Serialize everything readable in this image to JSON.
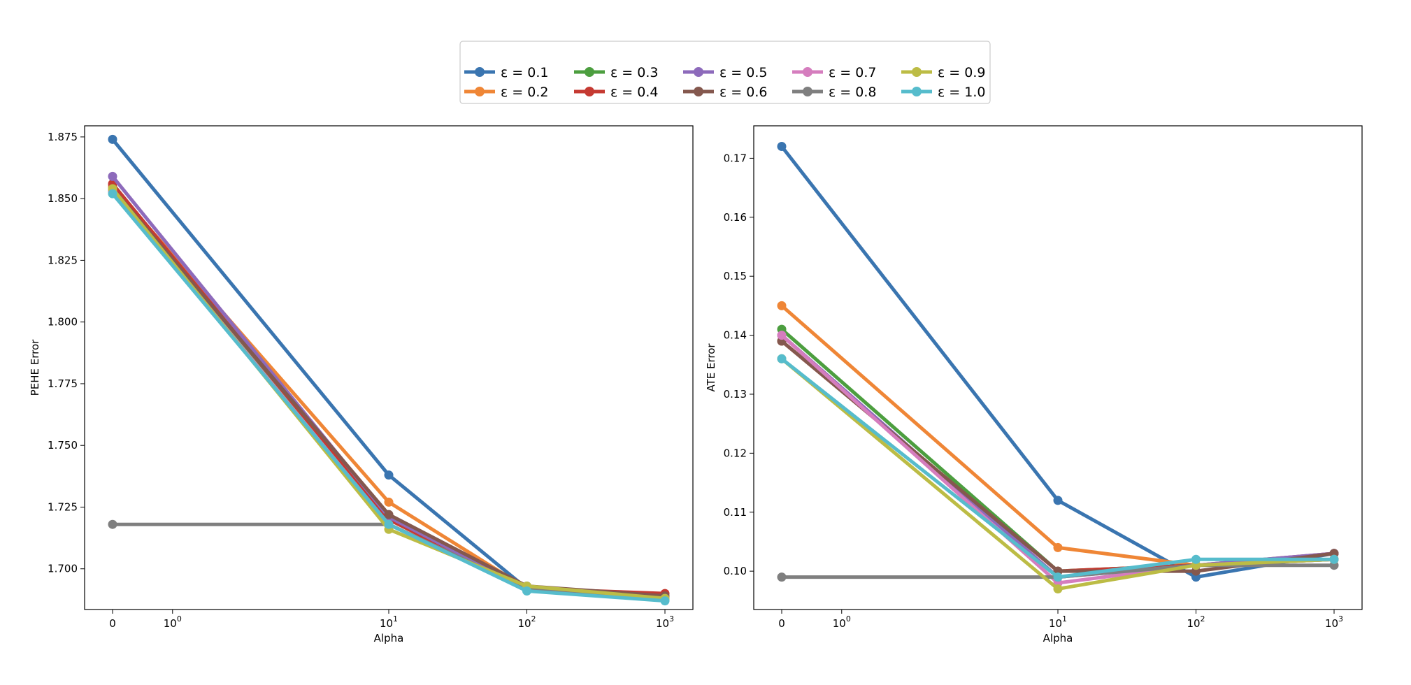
{
  "legend": {
    "entries": [
      {
        "label": "ε = 0.1",
        "color": "#3a75b0"
      },
      {
        "label": "ε = 0.2",
        "color": "#ef8636"
      },
      {
        "label": "ε = 0.3",
        "color": "#4c9e3f"
      },
      {
        "label": "ε = 0.4",
        "color": "#c53a32"
      },
      {
        "label": "ε = 0.5",
        "color": "#8d6abb"
      },
      {
        "label": "ε = 0.6",
        "color": "#84584e"
      },
      {
        "label": "ε = 0.7",
        "color": "#d57dbe"
      },
      {
        "label": "ε = 0.8",
        "color": "#7f7f7f"
      },
      {
        "label": "ε = 0.9",
        "color": "#bcbc45"
      },
      {
        "label": "ε = 1.0",
        "color": "#56bccc"
      }
    ]
  },
  "chart_data": [
    {
      "type": "line",
      "title": "",
      "xlabel": "Alpha",
      "ylabel": "PEHE Error",
      "x_scale": "symlog",
      "x": [
        0,
        10,
        100,
        1000
      ],
      "x_ticks": [
        {
          "value": 0,
          "base": "0",
          "exp": ""
        },
        {
          "value": 1,
          "base": "10",
          "exp": "0"
        },
        {
          "value": 10,
          "base": "10",
          "exp": "1"
        },
        {
          "value": 100,
          "base": "10",
          "exp": "2"
        },
        {
          "value": 1000,
          "base": "10",
          "exp": "3"
        }
      ],
      "ylim": [
        1.6835,
        1.8795
      ],
      "y_ticks": [
        "1.700",
        "1.725",
        "1.750",
        "1.775",
        "1.800",
        "1.825",
        "1.850",
        "1.875"
      ],
      "series": [
        {
          "name": "ε = 0.1",
          "values": [
            1.874,
            1.738,
            1.692,
            1.688
          ]
        },
        {
          "name": "ε = 0.2",
          "values": [
            1.855,
            1.727,
            1.692,
            1.688
          ]
        },
        {
          "name": "ε = 0.3",
          "values": [
            1.853,
            1.72,
            1.692,
            1.688
          ]
        },
        {
          "name": "ε = 0.4",
          "values": [
            1.856,
            1.72,
            1.692,
            1.69
          ]
        },
        {
          "name": "ε = 0.5",
          "values": [
            1.859,
            1.721,
            1.692,
            1.688
          ]
        },
        {
          "name": "ε = 0.6",
          "values": [
            1.854,
            1.722,
            1.693,
            1.689
          ]
        },
        {
          "name": "ε = 0.7",
          "values": [
            1.853,
            1.718,
            1.692,
            1.688
          ]
        },
        {
          "name": "ε = 0.8",
          "values": [
            1.718,
            1.718,
            1.692,
            1.688
          ]
        },
        {
          "name": "ε = 0.9",
          "values": [
            1.854,
            1.716,
            1.693,
            1.688
          ]
        },
        {
          "name": "ε = 1.0",
          "values": [
            1.852,
            1.718,
            1.691,
            1.687
          ]
        }
      ]
    },
    {
      "type": "line",
      "title": "",
      "xlabel": "Alpha",
      "ylabel": "ATE Error",
      "x_scale": "symlog",
      "x": [
        0,
        10,
        100,
        1000
      ],
      "x_ticks": [
        {
          "value": 0,
          "base": "0",
          "exp": ""
        },
        {
          "value": 1,
          "base": "10",
          "exp": "0"
        },
        {
          "value": 10,
          "base": "10",
          "exp": "1"
        },
        {
          "value": 100,
          "base": "10",
          "exp": "2"
        },
        {
          "value": 1000,
          "base": "10",
          "exp": "3"
        }
      ],
      "ylim": [
        0.0935,
        0.1755
      ],
      "y_ticks": [
        "0.10",
        "0.11",
        "0.12",
        "0.13",
        "0.14",
        "0.15",
        "0.16",
        "0.17"
      ],
      "series": [
        {
          "name": "ε = 0.1",
          "values": [
            0.172,
            0.112,
            0.099,
            0.103
          ]
        },
        {
          "name": "ε = 0.2",
          "values": [
            0.145,
            0.104,
            0.101,
            0.102
          ]
        },
        {
          "name": "ε = 0.3",
          "values": [
            0.141,
            0.1,
            0.101,
            0.102
          ]
        },
        {
          "name": "ε = 0.4",
          "values": [
            0.139,
            0.1,
            0.101,
            0.103
          ]
        },
        {
          "name": "ε = 0.5",
          "values": [
            0.14,
            0.099,
            0.101,
            0.103
          ]
        },
        {
          "name": "ε = 0.6",
          "values": [
            0.139,
            0.1,
            0.1,
            0.103
          ]
        },
        {
          "name": "ε = 0.7",
          "values": [
            0.14,
            0.098,
            0.101,
            0.102
          ]
        },
        {
          "name": "ε = 0.8",
          "values": [
            0.099,
            0.099,
            0.101,
            0.101
          ]
        },
        {
          "name": "ε = 0.9",
          "values": [
            0.136,
            0.097,
            0.101,
            0.102
          ]
        },
        {
          "name": "ε = 1.0",
          "values": [
            0.136,
            0.099,
            0.102,
            0.102
          ]
        }
      ]
    }
  ]
}
